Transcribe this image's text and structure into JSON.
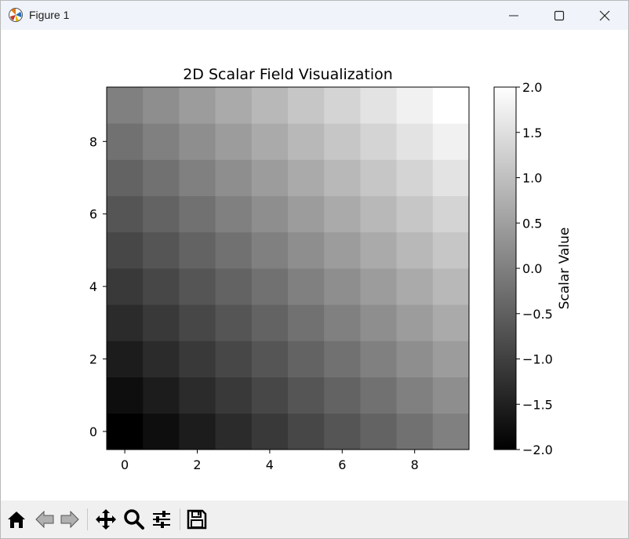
{
  "window": {
    "title": "Figure 1",
    "icons": [
      "matplotlib-logo-icon",
      "minimize-icon",
      "maximize-icon",
      "close-icon"
    ]
  },
  "toolbar": {
    "tools": [
      "home-icon",
      "back-icon",
      "forward-icon",
      "pan-icon",
      "zoom-icon",
      "configure-subplots-icon",
      "save-icon"
    ]
  },
  "chart_data": {
    "type": "heatmap",
    "title": "2D Scalar Field Visualization",
    "xlabel": "",
    "ylabel": "",
    "colormap": "gray",
    "x_ticks": [
      "0",
      "2",
      "4",
      "6",
      "8"
    ],
    "y_ticks": [
      "0",
      "2",
      "4",
      "6",
      "8"
    ],
    "xlim": [
      -0.5,
      9.5
    ],
    "ylim": [
      -0.5,
      9.5
    ],
    "grid": false,
    "origin": "lower",
    "colorbar": {
      "label": "Scalar Value",
      "range": [
        -2.0,
        2.0
      ],
      "ticks": [
        "2.0",
        "1.5",
        "1.0",
        "0.5",
        "0.0",
        "−0.5",
        "−1.0",
        "−1.5",
        "−2.0"
      ]
    },
    "values": [
      [
        -2.0,
        -1.78,
        -1.56,
        -1.33,
        -1.11,
        -0.89,
        -0.67,
        -0.44,
        -0.22,
        0.0
      ],
      [
        -1.78,
        -1.56,
        -1.33,
        -1.11,
        -0.89,
        -0.67,
        -0.44,
        -0.22,
        0.0,
        0.22
      ],
      [
        -1.56,
        -1.33,
        -1.11,
        -0.89,
        -0.67,
        -0.44,
        -0.22,
        0.0,
        0.22,
        0.44
      ],
      [
        -1.33,
        -1.11,
        -0.89,
        -0.67,
        -0.44,
        -0.22,
        0.0,
        0.22,
        0.44,
        0.67
      ],
      [
        -1.11,
        -0.89,
        -0.67,
        -0.44,
        -0.22,
        0.0,
        0.22,
        0.44,
        0.67,
        0.89
      ],
      [
        -0.89,
        -0.67,
        -0.44,
        -0.22,
        0.0,
        0.22,
        0.44,
        0.67,
        0.89,
        1.11
      ],
      [
        -0.67,
        -0.44,
        -0.22,
        0.0,
        0.22,
        0.44,
        0.67,
        0.89,
        1.11,
        1.33
      ],
      [
        -0.44,
        -0.22,
        0.0,
        0.22,
        0.44,
        0.67,
        0.89,
        1.11,
        1.33,
        1.56
      ],
      [
        -0.22,
        0.0,
        0.22,
        0.44,
        0.67,
        0.89,
        1.11,
        1.33,
        1.56,
        1.78
      ],
      [
        0.0,
        0.22,
        0.44,
        0.67,
        0.89,
        1.11,
        1.33,
        1.56,
        1.78,
        2.0
      ]
    ]
  }
}
